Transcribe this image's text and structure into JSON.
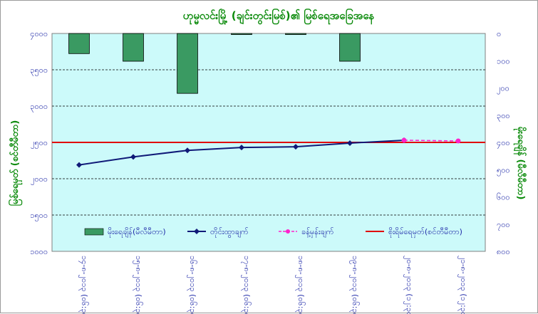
{
  "chart_data": {
    "type": "bar+line",
    "title": "ဟုမ္မလင်းမြို့ (ချင်းတွင်းမြစ်)၏ မြစ်ရေအခြေအနေ",
    "ylabel": "မြစ်ရေမှတ် (စင်တီမီတာ)",
    "y2label": "မိုးရေချိန် (မီလီမီတာ)",
    "ylim": [
      1000,
      4000
    ],
    "y2lim": [
      0,
      800
    ],
    "y2_inverted": true,
    "yticks": [
      "၁၀၀၀",
      "၁၅၀၀",
      "၂၀၀၀",
      "၂၅၀၀",
      "၃၀၀၀",
      "၃၅၀၀",
      "၄၀၀၀"
    ],
    "y2ticks": [
      "၀",
      "၁၀၀",
      "၂၀၀",
      "၃၀၀",
      "၄၀၀",
      "၅၀၀",
      "၆၀၀",
      "၇၀၀",
      "၈၀၀"
    ],
    "categories": [
      "၁၄-၈-၂၀၁၃ (၀၆:၃၀)",
      "၁၅-၈-၂၀၁၃ (၀၆:၃၀)",
      "၁၆-၈-၂၀၁၃ (၀၆:၃၀)",
      "၁၇-၈-၂၀၁၃ (၀၆:၃၀)",
      "၁၈-၈-၂၀၁၃ (၀၆:၃၀)",
      "၁၉-၈-၂၀၁၃ (၀၆:၃၀)",
      "၂၀-၈-၂၀၁၃ (၁၂:၃၀)",
      "၂၁-၈-၂၀၁၃ (၁၂:၃၀)"
    ],
    "grid": true,
    "series": [
      {
        "name": "မိုးရေချိန်(မီလီမီတာ)",
        "type": "bar",
        "axis": "y2",
        "color": "#3a9a62",
        "values": [
          74,
          102,
          220,
          4,
          4,
          102,
          null,
          null
        ]
      },
      {
        "name": "တိုင်းထွာချက်",
        "type": "line",
        "axis": "y",
        "color": "#101a78",
        "values": [
          2190,
          2300,
          2390,
          2430,
          2440,
          2490,
          2530,
          null
        ]
      },
      {
        "name": "ခန့်မှန်းချက်",
        "type": "line-dashed",
        "axis": "y",
        "color": "#ff22cc",
        "values": [
          null,
          null,
          null,
          null,
          null,
          null,
          2530,
          2520
        ]
      },
      {
        "name": "စိုးရိမ်ရေမှတ်(စင်တီမီတာ)",
        "type": "hline",
        "axis": "y",
        "color": "#e00000",
        "value": 2500
      }
    ],
    "legend_position": "bottom-inside",
    "colors": {
      "plot_bg": "#ccfafa",
      "text": "#1f2aa8",
      "title": "#0a8a0a"
    }
  }
}
